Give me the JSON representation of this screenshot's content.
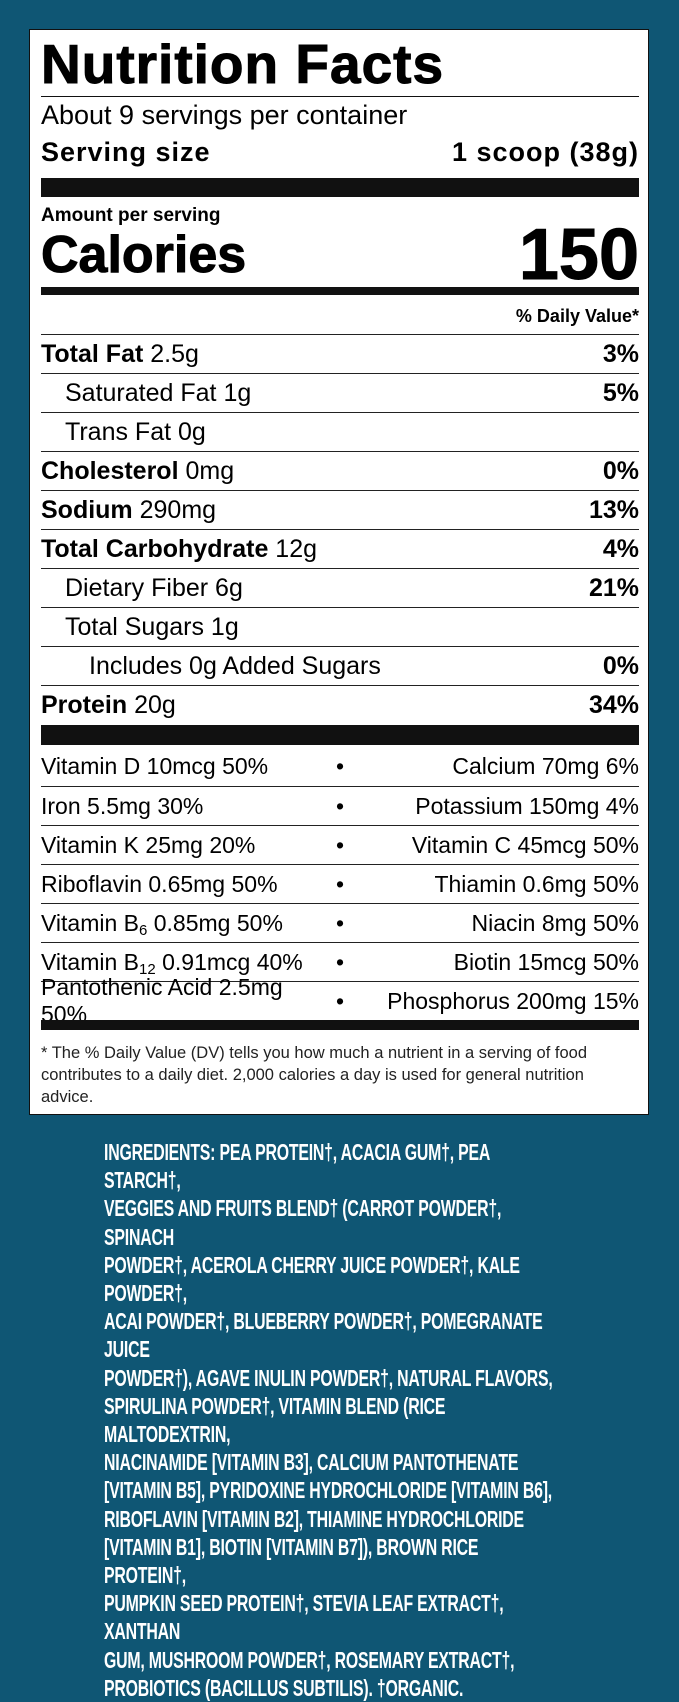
{
  "label": {
    "title": "Nutrition Facts",
    "servings": "About 9 servings per container",
    "serving_size_label": "Serving size",
    "serving_size_value": "1 scoop (38g)",
    "amount_per_serving": "Amount per serving",
    "calories_label": "Calories",
    "calories_value": "150",
    "dv_header": "% Daily Value*",
    "nutrients": [
      {
        "name": "Total Fat",
        "amount": "2.5g",
        "dv": "3%",
        "bold": true,
        "indent": 0
      },
      {
        "name": "Saturated Fat",
        "amount": "1g",
        "dv": "5%",
        "bold": false,
        "indent": 1
      },
      {
        "name": "Trans Fat",
        "amount": "0g",
        "dv": "",
        "bold": false,
        "indent": 1
      },
      {
        "name": "Cholesterol",
        "amount": "0mg",
        "dv": "0%",
        "bold": true,
        "indent": 0
      },
      {
        "name": "Sodium",
        "amount": "290mg",
        "dv": "13%",
        "bold": true,
        "indent": 0
      },
      {
        "name": "Total Carbohydrate",
        "amount": "12g",
        "dv": "4%",
        "bold": true,
        "indent": 0
      },
      {
        "name": "Dietary Fiber",
        "amount": "6g",
        "dv": "21%",
        "bold": false,
        "indent": 1
      },
      {
        "name": "Total Sugars",
        "amount": "1g",
        "dv": "",
        "bold": false,
        "indent": 1
      },
      {
        "name": "Includes 0g Added Sugars",
        "amount": "",
        "dv": "0%",
        "bold": false,
        "indent": 2
      },
      {
        "name": "Protein",
        "amount": "20g",
        "dv": "34%",
        "bold": true,
        "indent": 0
      }
    ],
    "vitamins": [
      {
        "left": "Vitamin D 10mcg 50%",
        "right": "Calcium 70mg 6%"
      },
      {
        "left": "Iron 5.5mg 30%",
        "right": "Potassium 150mg 4%"
      },
      {
        "left": "Vitamin K 25mg 20%",
        "right": "Vitamin C 45mcg 50%"
      },
      {
        "left": "Riboflavin 0.65mg 50%",
        "right": "Thiamin 0.6mg 50%"
      },
      {
        "left_pre": "Vitamin B",
        "left_sub": "6",
        "left_post": " 0.85mg 50%",
        "right": "Niacin 8mg 50%"
      },
      {
        "left_pre": "Vitamin B",
        "left_sub": "12",
        "left_post": " 0.91mcg 40%",
        "right": "Biotin 15mcg 50%"
      },
      {
        "left": "Pantothenic Acid 2.5mg 50%",
        "right": "Phosphorus 200mg 15%"
      }
    ],
    "bullet": "•",
    "footnote": "* The % Daily Value (DV) tells you how much a nutrient in a serving of food contributes to a daily diet. 2,000 calories a day is used for general nutrition advice."
  },
  "ingredients": [
    "INGREDIENTS: PEA PROTEIN†, ACACIA GUM†, PEA STARCH†,",
    "VEGGIES AND FRUITS BLEND† (CARROT POWDER†, SPINACH",
    "POWDER†, ACEROLA CHERRY JUICE POWDER†, KALE POWDER†,",
    "ACAI POWDER†, BLUEBERRY POWDER†, POMEGRANATE JUICE",
    "POWDER†), AGAVE INULIN POWDER†, NATURAL FLAVORS,",
    "SPIRULINA POWDER†, VITAMIN BLEND (RICE MALTODEXTRIN,",
    "NIACINAMIDE [VITAMIN B3], CALCIUM PANTOTHENATE",
    "[VITAMIN B5], PYRIDOXINE HYDROCHLORIDE [VITAMIN B6],",
    "RIBOFLAVIN [VITAMIN B2], THIAMINE HYDROCHLORIDE",
    "[VITAMIN B1], BIOTIN [VITAMIN B7]), BROWN RICE PROTEIN†,",
    "PUMPKIN SEED PROTEIN†, STEVIA LEAF EXTRACT†, XANTHAN",
    "GUM, MUSHROOM POWDER†, ROSEMARY EXTRACT†,",
    "PROBIOTICS (BACILLUS SUBTILIS). †ORGANIC."
  ],
  "colors": {
    "background": "#0f5674",
    "panel": "#ffffff",
    "text": "#111111"
  }
}
